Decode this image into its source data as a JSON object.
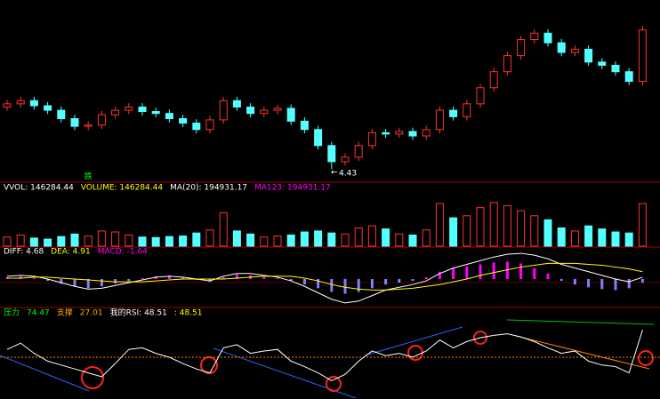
{
  "chart_data": [
    {
      "type": "candlestick",
      "open": [
        5.4,
        5.45,
        5.5,
        5.42,
        5.35,
        5.22,
        5.1,
        5.12,
        5.28,
        5.35,
        5.4,
        5.33,
        5.3,
        5.22,
        5.15,
        5.05,
        5.2,
        5.5,
        5.4,
        5.3,
        5.35,
        5.38,
        5.18,
        5.05,
        4.8,
        4.55,
        4.62,
        4.8,
        5.0,
        4.98,
        5.02,
        4.95,
        5.05,
        5.35,
        5.25,
        5.45,
        5.7,
        5.95,
        6.2,
        6.45,
        6.55,
        6.4,
        6.25,
        6.3,
        6.1,
        6.05,
        5.95,
        5.8
      ],
      "high": [
        5.51,
        5.56,
        5.56,
        5.48,
        5.41,
        5.28,
        5.18,
        5.34,
        5.41,
        5.46,
        5.46,
        5.39,
        5.36,
        5.28,
        5.21,
        5.26,
        5.56,
        5.56,
        5.46,
        5.41,
        5.44,
        5.44,
        5.24,
        5.11,
        4.86,
        4.68,
        4.86,
        5.06,
        5.06,
        5.08,
        5.08,
        5.11,
        5.41,
        5.41,
        5.51,
        5.76,
        6.01,
        6.26,
        6.51,
        6.61,
        6.61,
        6.46,
        6.36,
        6.36,
        6.16,
        6.11,
        6.01,
        6.66
      ],
      "low": [
        5.34,
        5.39,
        5.36,
        5.29,
        5.16,
        5.04,
        5.04,
        5.06,
        5.22,
        5.29,
        5.27,
        5.24,
        5.16,
        5.09,
        4.99,
        4.99,
        5.14,
        5.34,
        5.24,
        5.24,
        5.29,
        5.12,
        4.99,
        4.74,
        4.43,
        4.49,
        4.56,
        4.74,
        4.92,
        4.92,
        4.89,
        4.89,
        4.99,
        5.19,
        5.19,
        5.39,
        5.64,
        5.89,
        6.14,
        6.39,
        6.34,
        6.19,
        6.19,
        6.04,
        5.99,
        5.89,
        5.74,
        5.74
      ],
      "close": [
        5.45,
        5.5,
        5.42,
        5.35,
        5.22,
        5.1,
        5.12,
        5.28,
        5.35,
        5.4,
        5.33,
        5.3,
        5.22,
        5.15,
        5.05,
        5.2,
        5.5,
        5.4,
        5.3,
        5.35,
        5.38,
        5.18,
        5.05,
        4.8,
        4.55,
        4.62,
        4.8,
        5.0,
        4.98,
        5.02,
        4.95,
        5.05,
        5.35,
        5.25,
        5.45,
        5.7,
        5.95,
        6.2,
        6.45,
        6.55,
        6.4,
        6.25,
        6.3,
        6.1,
        6.05,
        5.95,
        5.8,
        6.6
      ],
      "up_color": "#ff3232",
      "down_color": "#54ffff",
      "ylim": [
        4.3,
        6.9
      ],
      "marker": {
        "text": "跌",
        "color": "#00ff00"
      }
    },
    {
      "type": "bar",
      "legend": [
        {
          "label": "VVOL: 146284.44",
          "color": "#ffffff"
        },
        {
          "label": "VOLUME: 146284.44",
          "color": "#ffff00"
        },
        {
          "label": "MA(20): 194931.17",
          "color": "#ffffff"
        },
        {
          "label": "MA123: 194931.17",
          "color": "#ff00ff"
        }
      ],
      "values": [
        90000,
        110000,
        80000,
        70000,
        95000,
        120000,
        100000,
        150000,
        140000,
        110000,
        90000,
        85000,
        95000,
        100000,
        130000,
        160000,
        330000,
        150000,
        120000,
        90000,
        100000,
        110000,
        140000,
        150000,
        130000,
        120000,
        180000,
        200000,
        170000,
        120000,
        110000,
        160000,
        420000,
        280000,
        300000,
        380000,
        430000,
        400000,
        350000,
        300000,
        260000,
        180000,
        150000,
        200000,
        170000,
        140000,
        130000,
        420000
      ],
      "ylim": [
        0,
        500000
      ]
    },
    {
      "type": "macd",
      "legend": [
        {
          "label": "DIFF: 4.68",
          "color": "#ffffff"
        },
        {
          "label": "DEA: 4.91",
          "color": "#ffff00"
        },
        {
          "label": "MACD: -1.64",
          "color": "#ff00ff"
        }
      ],
      "histogram": [
        2,
        3,
        1,
        -2,
        -5,
        -8,
        -10,
        -8,
        -5,
        -2,
        1,
        3,
        4,
        2,
        -1,
        -3,
        2,
        5,
        4,
        2,
        1,
        -2,
        -6,
        -10,
        -14,
        -16,
        -14,
        -10,
        -6,
        -4,
        -2,
        2,
        8,
        12,
        14,
        16,
        18,
        19,
        17,
        12,
        6,
        -2,
        -6,
        -9,
        -11,
        -12,
        -10,
        -4
      ],
      "pos_color": "#ff00ff",
      "neg_color": "#8080ff",
      "series": [
        {
          "color": "#ffffff",
          "values": [
            3,
            4,
            3,
            0,
            -4,
            -8,
            -11,
            -10,
            -7,
            -4,
            -1,
            2,
            3,
            2,
            0,
            -2,
            3,
            6,
            6,
            4,
            2,
            -2,
            -8,
            -15,
            -22,
            -26,
            -24,
            -18,
            -12,
            -9,
            -6,
            -2,
            6,
            12,
            16,
            20,
            24,
            27,
            28,
            26,
            22,
            16,
            12,
            8,
            4,
            0,
            -3,
            2
          ]
        },
        {
          "color": "#ffff00",
          "values": [
            1,
            1,
            2,
            2,
            1,
            0,
            -1,
            -2,
            -3,
            -3,
            -3,
            -2,
            -1,
            0,
            0,
            0,
            0,
            1,
            2,
            3,
            3,
            3,
            1,
            -2,
            -6,
            -9,
            -11,
            -12,
            -12,
            -11,
            -10,
            -8,
            -6,
            -3,
            0,
            4,
            7,
            10,
            13,
            15,
            17,
            17,
            17,
            16,
            15,
            13,
            11,
            8
          ]
        }
      ],
      "ylim": [
        -30,
        30
      ]
    },
    {
      "type": "line",
      "legend": [
        {
          "label": "压力",
          "color": "#00ff00"
        },
        {
          "label": "74.47",
          "color": "#00ff00"
        },
        {
          "label": "支撑",
          "color": "#ffaa00"
        },
        {
          "label": "27.01",
          "color": "#ffaa00"
        },
        {
          "label": "我的RSI: 48.51",
          "color": "#ffffff"
        },
        {
          "label": ": 48.51",
          "color": "#ffff00"
        }
      ],
      "series": [
        {
          "color": "#ffffff",
          "values": [
            60,
            68,
            55,
            45,
            40,
            35,
            30,
            25,
            42,
            60,
            62,
            55,
            50,
            42,
            35,
            30,
            62,
            66,
            55,
            58,
            60,
            45,
            38,
            30,
            20,
            28,
            45,
            58,
            52,
            55,
            50,
            58,
            72,
            62,
            70,
            75,
            78,
            80,
            76,
            70,
            62,
            55,
            58,
            45,
            40,
            38,
            30,
            85
          ]
        }
      ],
      "reference": 50,
      "ylim": [
        0,
        100
      ]
    }
  ]
}
